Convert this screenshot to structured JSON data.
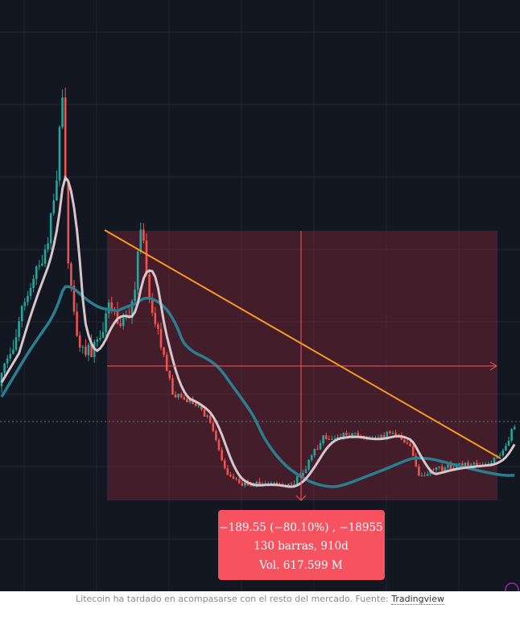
{
  "tooltip": {
    "line1": "−189.55 (−80.10%) , −18955",
    "line2": "130 barras, 910d",
    "line3": "Vol. 617.599 M"
  },
  "caption": {
    "text": "Litecoin ha tardado en acompasarse con el resto del mercado. Fuente:",
    "source": "Tradingview"
  }
}
